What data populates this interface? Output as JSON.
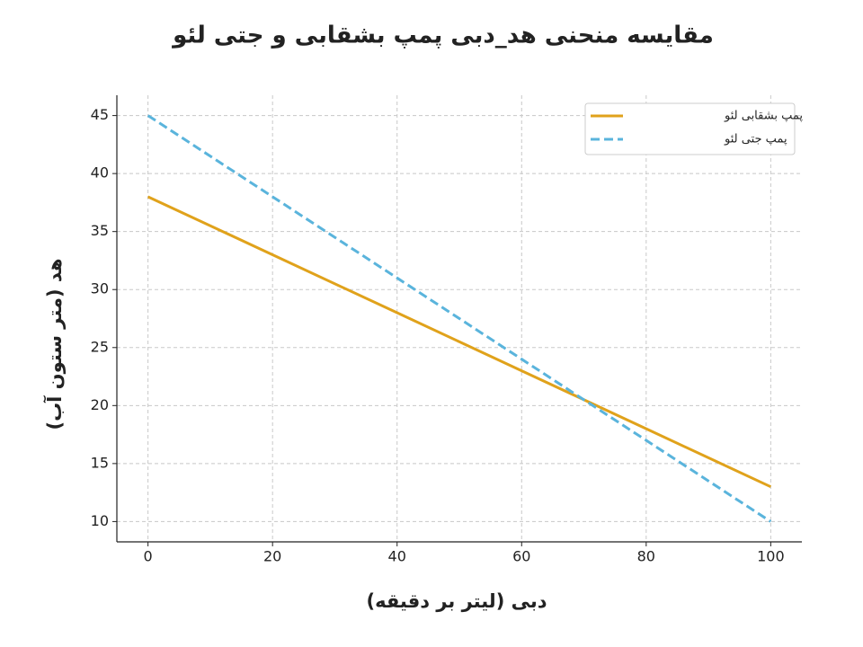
{
  "chart_data": {
    "type": "line",
    "title": "مقایسه منحنی هد_دبی پمپ بشقابی  و جتی لئو",
    "x_label": "دبی (لیتر بر دقیقه)",
    "y_label": "هد (متر ستون آب)",
    "x": [
      0,
      20,
      40,
      60,
      80,
      100
    ],
    "series": [
      {
        "name": "پمپ بشقابی لئو",
        "color": "#e0a21b",
        "dashed": false,
        "values": [
          38,
          33,
          28,
          23,
          18,
          13
        ]
      },
      {
        "name": "پمپ جتی لئو",
        "color": "#5ab4dc",
        "dashed": true,
        "values": [
          45,
          38,
          31,
          24,
          17,
          10
        ]
      }
    ],
    "xlim": [
      -5,
      105
    ],
    "xticks": [
      0,
      20,
      40,
      60,
      80,
      100
    ],
    "ylim": [
      8.25,
      46.75
    ],
    "yticks": [
      10,
      15,
      20,
      25,
      30,
      35,
      40,
      45
    ],
    "grid": true,
    "legend": "upper right"
  }
}
